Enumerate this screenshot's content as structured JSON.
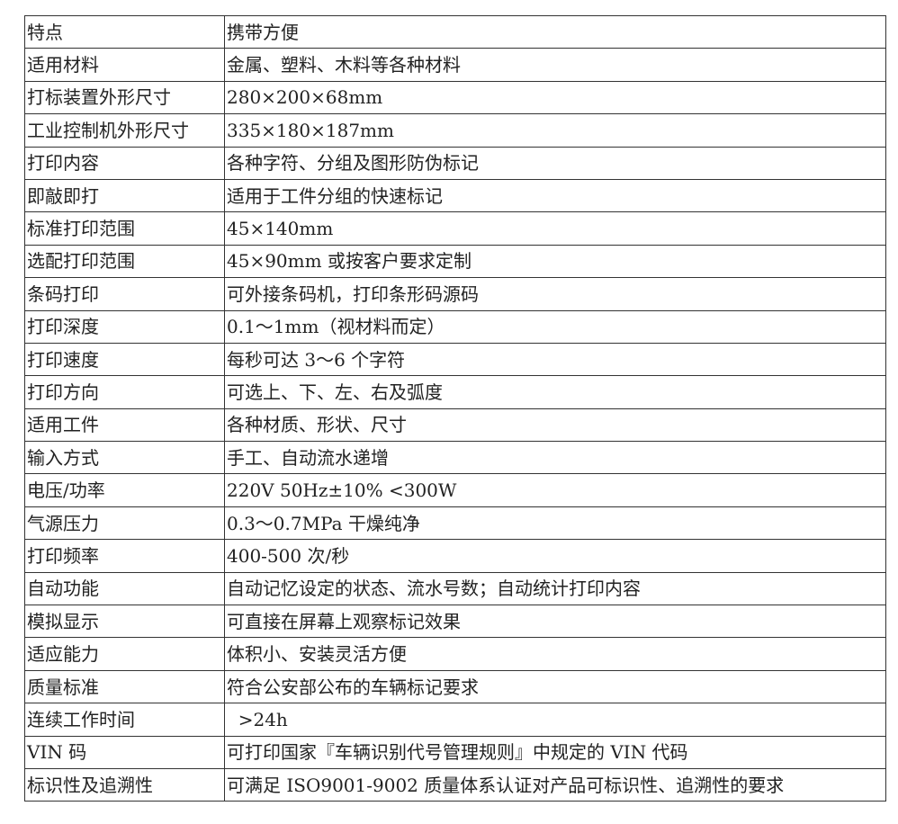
{
  "rows": [
    {
      "label": "特点",
      "value": "携带方便"
    },
    {
      "label": "适用材料",
      "value": "金属、塑料、木料等各种材料"
    },
    {
      "label": "打标装置外形尺寸",
      "value": "280×200×68mm"
    },
    {
      "label": "工业控制机外形尺寸",
      "value": "335×180×187mm"
    },
    {
      "label": "打印内容",
      "value": "各种字符、分组及图形防伪标记"
    },
    {
      "label": "即敲即打",
      "value": "适用于工件分组的快速标记"
    },
    {
      "label": "标准打印范围",
      "value": "45×140mm"
    },
    {
      "label": "选配打印范围",
      "value": "45×90mm 或按客户要求定制"
    },
    {
      "label": "条码打印",
      "value": "可外接条码机，打印条形码源码"
    },
    {
      "label": "打印深度",
      "value": "0.1～1mm（视材料而定）"
    },
    {
      "label": "打印速度",
      "value": "每秒可达 3～6 个字符"
    },
    {
      "label": "打印方向",
      "value": "可选上、下、左、右及弧度"
    },
    {
      "label": "适用工件",
      "value": "各种材质、形状、尺寸"
    },
    {
      "label": "输入方式",
      "value": "手工、自动流水递增"
    },
    {
      "label": "电压/功率",
      "value": "220V 50Hz±10% <300W"
    },
    {
      "label": "气源压力",
      "value": "0.3～0.7MPa 干燥纯净"
    },
    {
      "label": "打印频率",
      "value": "400-500 次/秒"
    },
    {
      "label": "自动功能",
      "value": "自动记忆设定的状态、流水号数；自动统计打印内容"
    },
    {
      "label": "模拟显示",
      "value": "可直接在屏幕上观察标记效果"
    },
    {
      "label": "适应能力",
      "value": "体积小、安装灵活方便"
    },
    {
      "label": "质量标准",
      "value": "符合公安部公布的车辆标记要求"
    },
    {
      "label": "连续工作时间",
      "value": "  >24h"
    },
    {
      "label": "VIN 码",
      "value": "可打印国家『车辆识别代号管理规则』中规定的 VIN 代码"
    },
    {
      "label": "标识性及追溯性",
      "value": "可满足 ISO9001-9002 质量体系认证对产品可标识性、追溯性的要求"
    }
  ]
}
